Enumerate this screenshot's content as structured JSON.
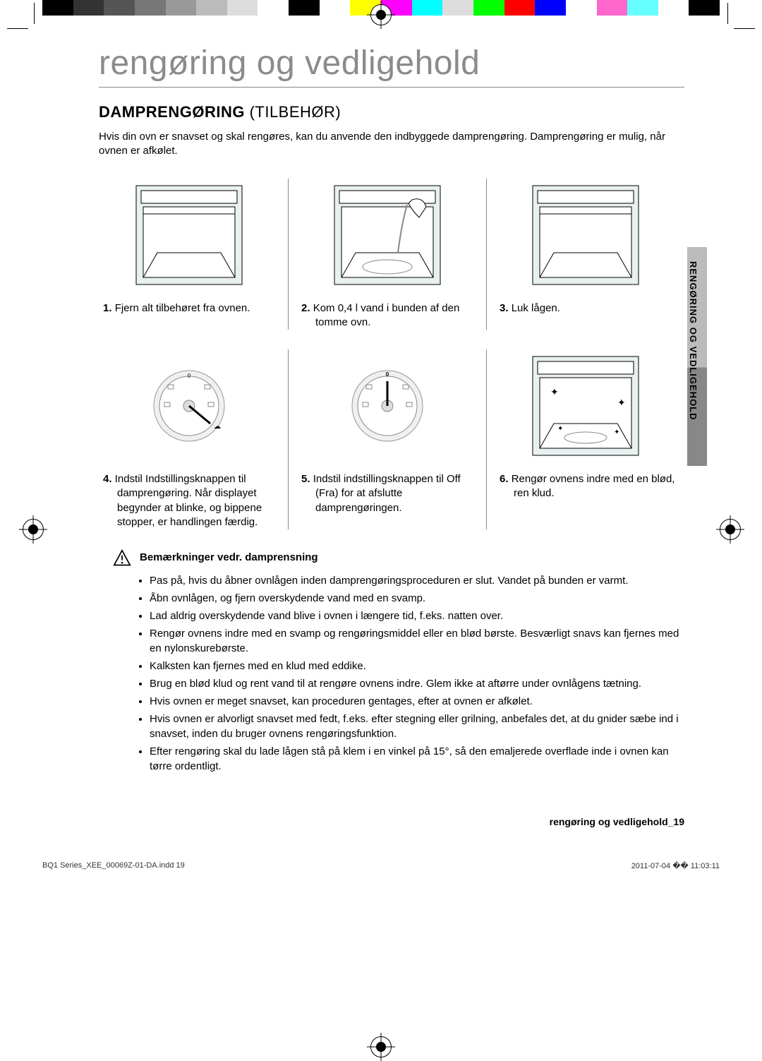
{
  "colorbar": [
    "#000000",
    "#333333",
    "#555555",
    "#777777",
    "#999999",
    "#bbbbbb",
    "#dddddd",
    "#ffffff",
    "#000000",
    "#ffffff",
    "#ffff00",
    "#ff00ff",
    "#00ffff",
    "#dddddd",
    "#00ff00",
    "#ff0000",
    "#0000ff",
    "#ffffff",
    "#ff66cc",
    "#66ffff",
    "#ffffff",
    "#000000"
  ],
  "main_title": "rengøring og vedligehold",
  "subtitle_bold": "DAMPRENGØRING",
  "subtitle_light": " (TILBEHØR)",
  "intro": "Hvis din ovn er snavset og skal rengøres, kan du anvende den indbyggede damprengøring. Damprengøring er mulig, når ovnen er afkølet.",
  "steps_row1": [
    {
      "num": "1.",
      "text": "Fjern alt tilbehøret fra ovnen."
    },
    {
      "num": "2.",
      "text": "Kom 0,4 l vand i bunden af den tomme ovn."
    },
    {
      "num": "3.",
      "text": "Luk lågen."
    }
  ],
  "steps_row2": [
    {
      "num": "4.",
      "text": "Indstil Indstillingsknappen til damprengøring. Når displayet begynder at blinke, og bippene stopper, er handlingen færdig."
    },
    {
      "num": "5.",
      "text": "Indstil indstillingsknappen til Off (Fra) for at afslutte damprengøringen."
    },
    {
      "num": "6.",
      "text": "Rengør ovnens indre med en blød, ren klud."
    }
  ],
  "side_tab": "RENGØRING OG VEDLIGEHOLD",
  "warning_title": "Bemærkninger vedr. damprensning",
  "bullets": [
    "Pas på, hvis du åbner ovnlågen inden damprengøringsproceduren er slut. Vandet på bunden er varmt.",
    "Åbn ovnlågen, og fjern overskydende vand med en svamp.",
    "Lad aldrig overskydende vand blive i ovnen i længere tid, f.eks. natten over.",
    "Rengør ovnens indre med en svamp og rengøringsmiddel eller en blød børste. Besværligt snavs kan fjernes med en nylonskurebørste.",
    "Kalksten kan fjernes med en klud med eddike.",
    "Brug en blød klud og rent vand til at rengøre ovnens indre. Glem ikke at aftørre under ovnlågens tætning.",
    "Hvis ovnen er meget snavset, kan proceduren gentages, efter at ovnen er afkølet.",
    "Hvis ovnen er alvorligt snavset med fedt, f.eks. efter stegning eller grilning, anbefales det, at du gnider sæbe ind i snavset, inden du bruger ovnens rengøringsfunktion.",
    "Efter rengøring skal du lade lågen stå på klem i en vinkel på 15°, så den emaljerede overflade inde i ovnen kan tørre ordentligt."
  ],
  "footer_right": "rengøring og vedligehold_19",
  "print_left": "BQ1 Series_XEE_00069Z-01-DA.indd   19",
  "print_right": "2011-07-04   �� 11:03:11"
}
